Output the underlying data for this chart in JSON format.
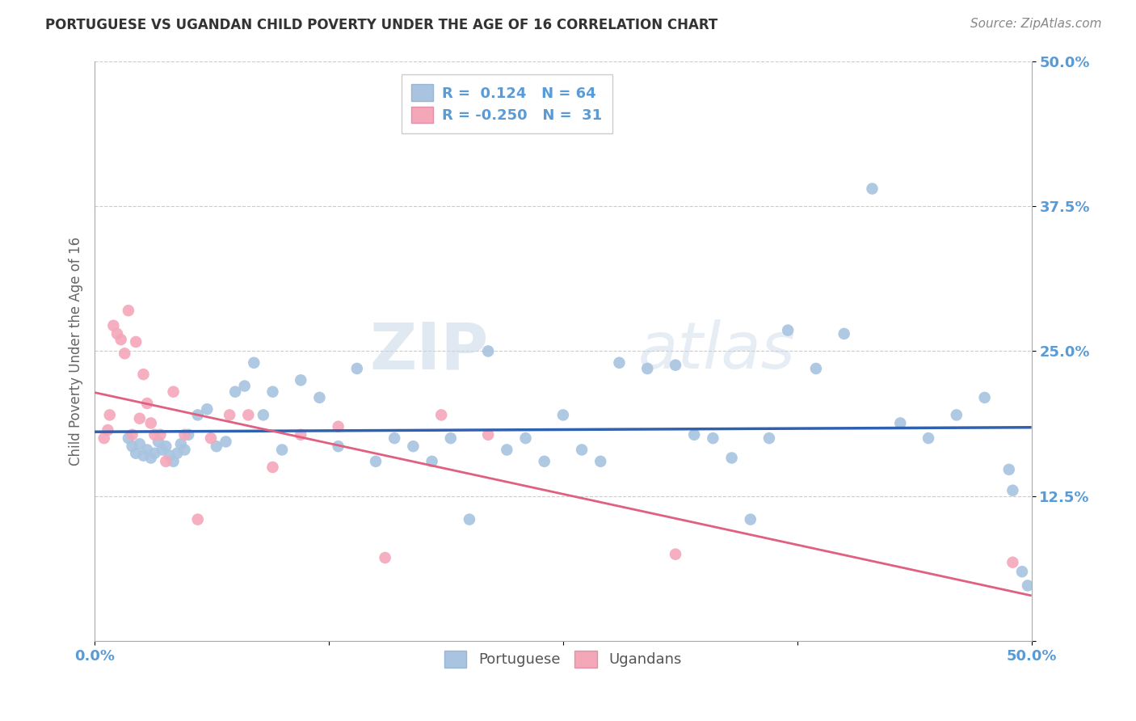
{
  "title": "PORTUGUESE VS UGANDAN CHILD POVERTY UNDER THE AGE OF 16 CORRELATION CHART",
  "source": "Source: ZipAtlas.com",
  "ylabel": "Child Poverty Under the Age of 16",
  "xlim": [
    0.0,
    0.5
  ],
  "ylim": [
    0.0,
    0.5
  ],
  "xticks": [
    0.0,
    0.125,
    0.25,
    0.375,
    0.5
  ],
  "yticks": [
    0.0,
    0.125,
    0.25,
    0.375,
    0.5
  ],
  "xtick_labels": [
    "0.0%",
    "",
    "",
    "",
    "50.0%"
  ],
  "ytick_labels": [
    "",
    "12.5%",
    "25.0%",
    "37.5%",
    "50.0%"
  ],
  "portuguese_R": 0.124,
  "portuguese_N": 64,
  "ugandan_R": -0.25,
  "ugandan_N": 31,
  "portuguese_color": "#a8c4e0",
  "ugandan_color": "#f4a7b9",
  "portuguese_line_color": "#3060b0",
  "ugandan_line_color": "#e06080",
  "watermark_zip": "ZIP",
  "watermark_atlas": "atlas",
  "background_color": "#ffffff",
  "grid_color": "#cccccc",
  "label_color": "#5b9bd5",
  "portuguese_x": [
    0.018,
    0.02,
    0.022,
    0.024,
    0.026,
    0.028,
    0.03,
    0.032,
    0.034,
    0.036,
    0.038,
    0.04,
    0.042,
    0.044,
    0.046,
    0.048,
    0.05,
    0.055,
    0.06,
    0.065,
    0.07,
    0.075,
    0.08,
    0.085,
    0.09,
    0.095,
    0.1,
    0.11,
    0.12,
    0.13,
    0.14,
    0.15,
    0.16,
    0.17,
    0.18,
    0.19,
    0.2,
    0.21,
    0.22,
    0.23,
    0.24,
    0.25,
    0.26,
    0.27,
    0.28,
    0.295,
    0.31,
    0.32,
    0.33,
    0.34,
    0.35,
    0.36,
    0.37,
    0.385,
    0.4,
    0.415,
    0.43,
    0.445,
    0.46,
    0.475,
    0.488,
    0.49,
    0.495,
    0.498
  ],
  "portuguese_y": [
    0.175,
    0.168,
    0.162,
    0.17,
    0.16,
    0.165,
    0.158,
    0.162,
    0.172,
    0.165,
    0.168,
    0.16,
    0.155,
    0.162,
    0.17,
    0.165,
    0.178,
    0.195,
    0.2,
    0.168,
    0.172,
    0.215,
    0.22,
    0.24,
    0.195,
    0.215,
    0.165,
    0.225,
    0.21,
    0.168,
    0.235,
    0.155,
    0.175,
    0.168,
    0.155,
    0.175,
    0.105,
    0.25,
    0.165,
    0.175,
    0.155,
    0.195,
    0.165,
    0.155,
    0.24,
    0.235,
    0.238,
    0.178,
    0.175,
    0.158,
    0.105,
    0.175,
    0.268,
    0.235,
    0.265,
    0.39,
    0.188,
    0.175,
    0.195,
    0.21,
    0.148,
    0.13,
    0.06,
    0.048
  ],
  "ugandan_x": [
    0.005,
    0.007,
    0.008,
    0.01,
    0.012,
    0.014,
    0.016,
    0.018,
    0.02,
    0.022,
    0.024,
    0.026,
    0.028,
    0.03,
    0.032,
    0.035,
    0.038,
    0.042,
    0.048,
    0.055,
    0.062,
    0.072,
    0.082,
    0.095,
    0.11,
    0.13,
    0.155,
    0.185,
    0.21,
    0.31,
    0.49
  ],
  "ugandan_y": [
    0.175,
    0.182,
    0.195,
    0.272,
    0.265,
    0.26,
    0.248,
    0.285,
    0.178,
    0.258,
    0.192,
    0.23,
    0.205,
    0.188,
    0.178,
    0.178,
    0.155,
    0.215,
    0.178,
    0.105,
    0.175,
    0.195,
    0.195,
    0.15,
    0.178,
    0.185,
    0.072,
    0.195,
    0.178,
    0.075,
    0.068
  ]
}
